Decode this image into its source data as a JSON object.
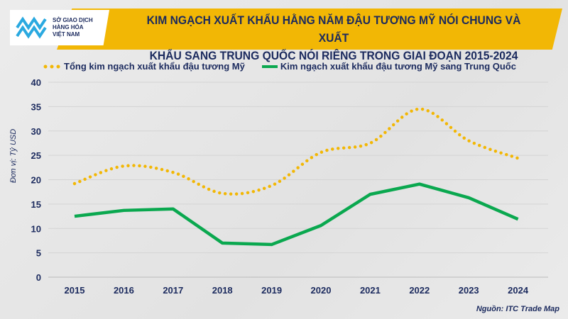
{
  "header": {
    "title_line1": "KIM NGẠCH XUẤT KHẨU HẰNG NĂM ĐẬU TƯƠNG MỸ NÓI CHUNG VÀ XUẤT",
    "title_line2": "KHẨU SANG TRUNG QUỐC NÓI RIÊNG TRONG GIAI ĐOẠN 2015-2024"
  },
  "logo": {
    "line1": "SỞ GIAO DỊCH",
    "line2": "HÀNG HÓA",
    "line3": "VIỆT NAM"
  },
  "source": "Nguồn: ITC Trade Map",
  "chart_data": {
    "type": "line",
    "title": "KIM NGẠCH XUẤT KHẨU HẰNG NĂM ĐẬU TƯƠNG MỸ NÓI CHUNG VÀ XUẤT KHẨU SANG TRUNG QUỐC NÓI RIÊNG TRONG GIAI ĐOẠN 2015-2024",
    "xlabel": "",
    "ylabel": "Đơn vị: Tỷ USD",
    "categories": [
      "2015",
      "2016",
      "2017",
      "2018",
      "2019",
      "2020",
      "2021",
      "2022",
      "2023",
      "2024"
    ],
    "ylim": [
      0,
      40
    ],
    "yticks": [
      0,
      5,
      10,
      15,
      20,
      25,
      30,
      35,
      40
    ],
    "grid": true,
    "legend": "top",
    "series": [
      {
        "name": "Tổng kim ngạch xuất khẩu đậu tương Mỹ",
        "color": "#f2b705",
        "style": "dotted",
        "values": [
          19.2,
          22.8,
          21.5,
          17.2,
          18.8,
          25.6,
          27.5,
          34.5,
          28.0,
          24.4
        ]
      },
      {
        "name": "Kim ngạch xuất khẩu đậu tương Mỹ sang Trung Quốc",
        "color": "#0aa84f",
        "style": "solid",
        "values": [
          12.5,
          13.7,
          14.0,
          7.0,
          6.7,
          10.6,
          17.0,
          19.1,
          16.3,
          11.9
        ]
      }
    ]
  }
}
